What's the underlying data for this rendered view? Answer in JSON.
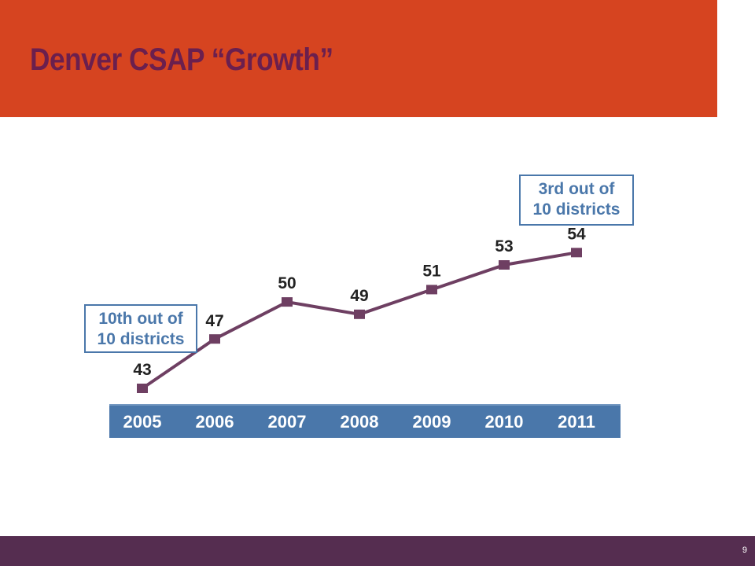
{
  "slide": {
    "title": "Denver CSAP “Growth”",
    "page_number": "9"
  },
  "colors": {
    "header": "#d64420",
    "title": "#6b1f4e",
    "footer": "#552d50",
    "line": "#6e3f62",
    "axis_band": "#4a77aa",
    "callout_border": "#4a77aa",
    "callout_text": "#4a77aa",
    "label_text": "#222222"
  },
  "chart_data": {
    "type": "line",
    "categories": [
      "2005",
      "2006",
      "2007",
      "2008",
      "2009",
      "2010",
      "2011"
    ],
    "series": [
      {
        "values": [
          43,
          47,
          50,
          49,
          51,
          53,
          54
        ]
      }
    ],
    "data_labels": [
      "43",
      "47",
      "50",
      "49",
      "51",
      "53",
      "54"
    ],
    "annotations": [
      {
        "category": "2005",
        "lines": [
          "10th out of",
          "10 districts"
        ]
      },
      {
        "category": "2011",
        "lines": [
          "3rd out of",
          "10 districts"
        ]
      }
    ],
    "title": "",
    "xlabel": "",
    "ylabel": "",
    "grid": false,
    "legend": "none"
  }
}
